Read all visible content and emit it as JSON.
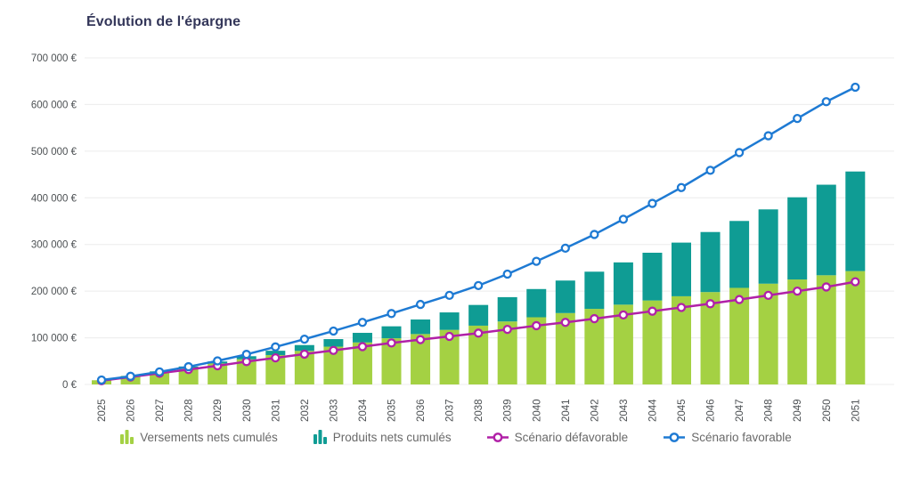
{
  "title": "Évolution de l'épargne",
  "chart_data": {
    "type": "bar",
    "subtype": "stacked-bars-with-lines",
    "title": "Évolution de l'épargne",
    "xlabel": "",
    "ylabel": "",
    "ylim": [
      0,
      700000
    ],
    "grid": true,
    "legend_position": "bottom",
    "y_ticks": [
      {
        "value": 0,
        "label": "0 €"
      },
      {
        "value": 100000,
        "label": "100 000 €"
      },
      {
        "value": 200000,
        "label": "200 000 €"
      },
      {
        "value": 300000,
        "label": "300 000 €"
      },
      {
        "value": 400000,
        "label": "400 000 €"
      },
      {
        "value": 500000,
        "label": "500 000 €"
      },
      {
        "value": 600000,
        "label": "600 000 €"
      },
      {
        "value": 700000,
        "label": "700 000 €"
      }
    ],
    "categories": [
      "2025",
      "2026",
      "2027",
      "2028",
      "2029",
      "2030",
      "2031",
      "2032",
      "2033",
      "2034",
      "2035",
      "2036",
      "2037",
      "2038",
      "2039",
      "2040",
      "2041",
      "2042",
      "2043",
      "2044",
      "2045",
      "2046",
      "2047",
      "2048",
      "2049",
      "2050",
      "2051"
    ],
    "series": [
      {
        "name": "Versements nets cumulés",
        "type": "bar",
        "stack": "total",
        "color": "#a4d143",
        "values": [
          9000,
          18000,
          27000,
          36000,
          45000,
          54000,
          63000,
          72000,
          81000,
          90000,
          99000,
          108000,
          117000,
          126000,
          135000,
          144000,
          153000,
          162000,
          171000,
          180000,
          189000,
          198000,
          207000,
          216000,
          225000,
          234000,
          243000
        ]
      },
      {
        "name": "Produits nets cumulés",
        "type": "bar",
        "stack": "total",
        "color": "#0f9c94",
        "values": [
          0,
          400,
          1200,
          2500,
          4200,
          6500,
          9200,
          12400,
          16200,
          20600,
          25600,
          31200,
          37400,
          44400,
          52100,
          60500,
          69700,
          79700,
          90600,
          102300,
          115000,
          128700,
          143400,
          159200,
          176100,
          194100,
          213400
        ]
      },
      {
        "name": "Scénario défavorable",
        "type": "line",
        "color": "#b120a7",
        "values": [
          8000,
          16000,
          24000,
          32000,
          40000,
          49000,
          57000,
          65000,
          73000,
          81000,
          89000,
          96000,
          103000,
          110000,
          118000,
          126000,
          133000,
          141000,
          149000,
          157000,
          165000,
          173000,
          182000,
          191000,
          200000,
          209000,
          220000
        ]
      },
      {
        "name": "Scénario favorable",
        "type": "line",
        "color": "#1e7ad3",
        "values": [
          9500,
          17500,
          27000,
          38000,
          50500,
          64500,
          80500,
          97000,
          114500,
          133000,
          152000,
          171500,
          191000,
          212000,
          236500,
          264000,
          292000,
          321500,
          354000,
          388000,
          422000,
          459000,
          497000,
          533000,
          570000,
          606000,
          637000
        ]
      }
    ],
    "colors": {
      "grid": "#ececec",
      "axis_text": "#4d5154",
      "title_text": "#333659",
      "legend_text": "#696969",
      "marker_fill": "#ffffff"
    }
  }
}
